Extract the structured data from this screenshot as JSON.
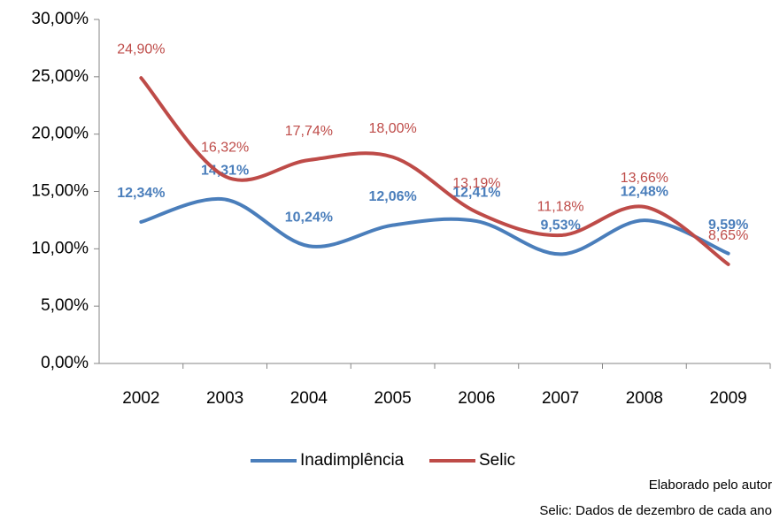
{
  "chart_data": {
    "type": "line",
    "categories": [
      "2002",
      "2003",
      "2004",
      "2005",
      "2006",
      "2007",
      "2008",
      "2009"
    ],
    "series": [
      {
        "name": "Inadimplência",
        "color": "#4a7ebb",
        "values": [
          12.34,
          14.31,
          10.24,
          12.06,
          12.41,
          9.53,
          12.48,
          9.59
        ],
        "value_labels": [
          "12,34%",
          "14,31%",
          "10,24%",
          "12,06%",
          "12,41%",
          "9,53%",
          "12,48%",
          "9,59%"
        ]
      },
      {
        "name": "Selic",
        "color": "#be4b48",
        "values": [
          24.9,
          16.32,
          17.74,
          18.0,
          13.19,
          11.18,
          13.66,
          8.65
        ],
        "value_labels": [
          "24,90%",
          "16,32%",
          "17,74%",
          "18,00%",
          "13,19%",
          "11,18%",
          "13,66%",
          "8,65%"
        ]
      }
    ],
    "ylim": [
      0,
      30
    ],
    "yticks": [
      {
        "value": 0,
        "label": "0,00%"
      },
      {
        "value": 5,
        "label": "5,00%"
      },
      {
        "value": 10,
        "label": "10,00%"
      },
      {
        "value": 15,
        "label": "15,00%"
      },
      {
        "value": 20,
        "label": "20,00%"
      },
      {
        "value": 25,
        "label": "25,00%"
      },
      {
        "value": 30,
        "label": "30,00%"
      }
    ],
    "smooth": true,
    "legend": "bottom",
    "annotations": [
      "Elaborado pelo autor",
      "Selic: Dados  de dezembro de cada ano"
    ]
  }
}
